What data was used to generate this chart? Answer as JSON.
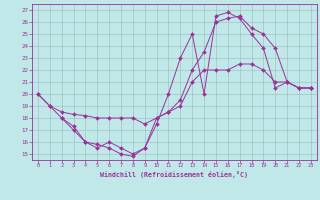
{
  "xlabel": "Windchill (Refroidissement éolien,°C)",
  "xlim": [
    -0.5,
    23.5
  ],
  "ylim": [
    14.5,
    27.5
  ],
  "xticks": [
    0,
    1,
    2,
    3,
    4,
    5,
    6,
    7,
    8,
    9,
    10,
    11,
    12,
    13,
    14,
    15,
    16,
    17,
    18,
    19,
    20,
    21,
    22,
    23
  ],
  "yticks": [
    15,
    16,
    17,
    18,
    19,
    20,
    21,
    22,
    23,
    24,
    25,
    26,
    27
  ],
  "bg_color": "#c0e8e8",
  "line_color": "#993399",
  "grid_color": "#99bbbb",
  "curves": [
    {
      "x": [
        0,
        1,
        2,
        3,
        4,
        5,
        6,
        7,
        8,
        9,
        10,
        11,
        12,
        13,
        14,
        15,
        16,
        17,
        18,
        19,
        20,
        21,
        22,
        23
      ],
      "y": [
        20,
        19,
        18,
        17.3,
        16,
        15.8,
        15.5,
        15,
        14.8,
        15.5,
        17.5,
        20,
        23,
        25,
        20,
        26.5,
        26.8,
        26.3,
        25,
        23.8,
        20.5,
        21,
        20.5,
        20.5
      ]
    },
    {
      "x": [
        0,
        1,
        2,
        3,
        4,
        5,
        6,
        7,
        8,
        9,
        10,
        11,
        12,
        13,
        14,
        15,
        16,
        17,
        18,
        19,
        20,
        21,
        22,
        23
      ],
      "y": [
        20,
        19,
        18.5,
        18.3,
        18.2,
        18,
        18,
        18,
        18,
        17.5,
        18,
        18.5,
        19.5,
        22,
        23.5,
        26,
        26.3,
        26.5,
        25.5,
        25,
        23.8,
        21,
        20.5,
        20.5
      ]
    },
    {
      "x": [
        2,
        3,
        4,
        5,
        6,
        7,
        8,
        9,
        10,
        11,
        12,
        13,
        14,
        15,
        16,
        17,
        18,
        19,
        20,
        21,
        22,
        23
      ],
      "y": [
        18,
        17,
        16,
        15.5,
        16,
        15.5,
        15,
        15.5,
        18,
        18.5,
        19,
        21,
        22,
        22,
        22,
        22.5,
        22.5,
        22,
        21,
        21,
        20.5,
        20.5
      ]
    }
  ]
}
